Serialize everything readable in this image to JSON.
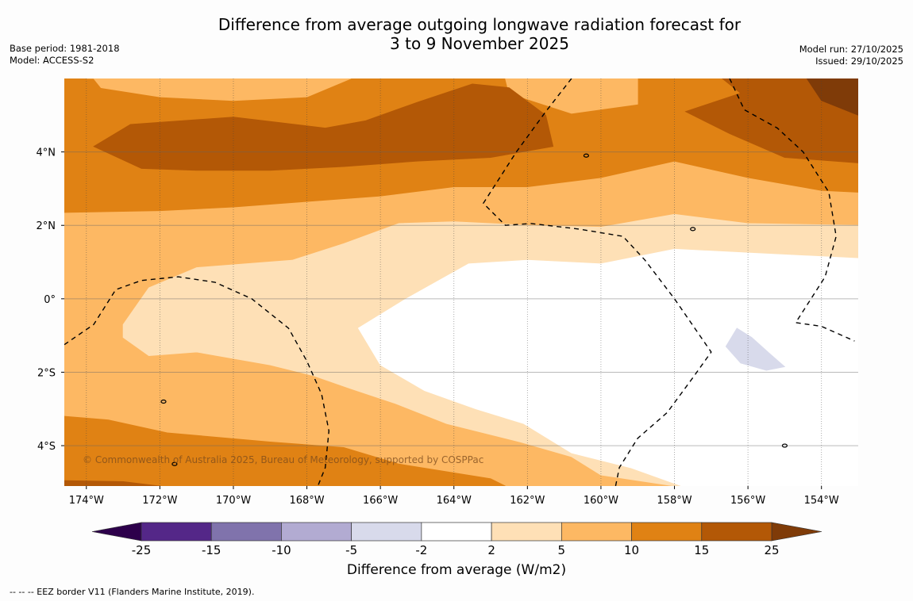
{
  "header": {
    "title_line1": "Difference from average outgoing longwave radiation forecast for",
    "title_line2": "3 to 9 November 2025",
    "base_period": "Base period: 1981-2018",
    "model": "Model: ACCESS-S2",
    "model_run": "Model run: 27/10/2025",
    "issued": "Issued: 29/10/2025"
  },
  "map": {
    "lon_range": [
      -174.6,
      -153.0
    ],
    "lat_range": [
      -5.1,
      6.0
    ],
    "lat_ticks": [
      {
        "value": 4,
        "label": "4°N"
      },
      {
        "value": 2,
        "label": "2°N"
      },
      {
        "value": 0,
        "label": "0°"
      },
      {
        "value": -2,
        "label": "2°S"
      },
      {
        "value": -4,
        "label": "4°S"
      }
    ],
    "lon_ticks": [
      {
        "value": -174,
        "label": "174°W"
      },
      {
        "value": -172,
        "label": "172°W"
      },
      {
        "value": -170,
        "label": "170°W"
      },
      {
        "value": -168,
        "label": "168°W"
      },
      {
        "value": -166,
        "label": "166°W"
      },
      {
        "value": -164,
        "label": "164°W"
      },
      {
        "value": -162,
        "label": "162°W"
      },
      {
        "value": -160,
        "label": "160°W"
      },
      {
        "value": -158,
        "label": "158°W"
      },
      {
        "value": -156,
        "label": "156°W"
      },
      {
        "value": -154,
        "label": "154°W"
      }
    ],
    "copyright": "© Commonwealth of Australia 2025, Bureau of Meteorology, supported by COSPPac",
    "background_band": "5 to 10",
    "contour_regions": [
      {
        "band": "10 to 15",
        "color": "#e08214",
        "points": [
          [
            -174.6,
            6.0
          ],
          [
            -153.0,
            6.0
          ],
          [
            -153.0,
            2.9
          ],
          [
            -154.0,
            2.95
          ],
          [
            -156.0,
            3.3
          ],
          [
            -158.0,
            3.75
          ],
          [
            -160.0,
            3.3
          ],
          [
            -162.0,
            3.05
          ],
          [
            -164.0,
            3.05
          ],
          [
            -166.0,
            2.8
          ],
          [
            -168.0,
            2.65
          ],
          [
            -170.0,
            2.5
          ],
          [
            -172.0,
            2.4
          ],
          [
            -174.6,
            2.35
          ]
        ]
      },
      {
        "band": "5 to 10",
        "color": "#fdb863",
        "points": [
          [
            -174.0,
            6.0
          ],
          [
            -166.8,
            6.0
          ],
          [
            -168.0,
            5.5
          ],
          [
            -170.0,
            5.4
          ],
          [
            -172.0,
            5.5
          ],
          [
            -173.6,
            5.75
          ],
          [
            -173.8,
            6.0
          ]
        ]
      },
      {
        "band": "5 to 10",
        "color": "#fdb863",
        "points": [
          [
            -162.6,
            6.0
          ],
          [
            -159.0,
            6.0
          ],
          [
            -159.0,
            5.3
          ],
          [
            -160.8,
            5.05
          ],
          [
            -162.5,
            5.6
          ]
        ]
      },
      {
        "band": "15 to 25",
        "color": "#b35806",
        "points": [
          [
            -173.8,
            4.15
          ],
          [
            -172.8,
            4.75
          ],
          [
            -170.0,
            4.95
          ],
          [
            -167.5,
            4.65
          ],
          [
            -166.4,
            4.85
          ],
          [
            -165.0,
            5.35
          ],
          [
            -163.5,
            5.85
          ],
          [
            -162.5,
            5.75
          ],
          [
            -161.5,
            5.0
          ],
          [
            -161.3,
            4.15
          ],
          [
            -163.0,
            3.85
          ],
          [
            -165.0,
            3.75
          ],
          [
            -167.0,
            3.6
          ],
          [
            -169.0,
            3.5
          ],
          [
            -171.0,
            3.5
          ],
          [
            -172.5,
            3.55
          ]
        ]
      },
      {
        "band": "15 to 25",
        "color": "#b35806",
        "points": [
          [
            -156.7,
            6.0
          ],
          [
            -153.0,
            6.0
          ],
          [
            -153.0,
            3.7
          ],
          [
            -155.0,
            3.85
          ],
          [
            -156.5,
            4.5
          ],
          [
            -157.7,
            5.1
          ],
          [
            -156.2,
            5.6
          ]
        ]
      },
      {
        "band": ">25",
        "color": "#7f3b08",
        "points": [
          [
            -154.4,
            6.0
          ],
          [
            -153.0,
            6.0
          ],
          [
            -153.0,
            5.0
          ],
          [
            -154.0,
            5.4
          ]
        ]
      },
      {
        "band": "2 to 5",
        "color": "#fee0b6",
        "points": [
          [
            -173.0,
            -0.7
          ],
          [
            -172.3,
            0.3
          ],
          [
            -171.0,
            0.85
          ],
          [
            -168.4,
            1.05
          ],
          [
            -167.0,
            1.5
          ],
          [
            -165.5,
            2.05
          ],
          [
            -164.0,
            2.1
          ],
          [
            -162.0,
            2.0
          ],
          [
            -160.0,
            1.95
          ],
          [
            -158.0,
            2.3
          ],
          [
            -156.0,
            2.05
          ],
          [
            -153.0,
            2.0
          ],
          [
            -153.0,
            -5.1
          ],
          [
            -158.0,
            -5.1
          ],
          [
            -160.0,
            -4.8
          ],
          [
            -160.8,
            -4.3
          ],
          [
            -162.2,
            -3.9
          ],
          [
            -164.2,
            -3.4
          ],
          [
            -165.6,
            -2.85
          ],
          [
            -166.8,
            -2.45
          ],
          [
            -167.8,
            -2.1
          ],
          [
            -169.0,
            -1.8
          ],
          [
            -171.0,
            -1.45
          ],
          [
            -172.3,
            -1.55
          ],
          [
            -173.0,
            -1.05
          ]
        ]
      },
      {
        "band": "-2 to 2",
        "color": "#ffffff",
        "points": [
          [
            -166.6,
            -0.8
          ],
          [
            -165.3,
            0.0
          ],
          [
            -163.6,
            0.95
          ],
          [
            -162.0,
            1.05
          ],
          [
            -160.0,
            0.95
          ],
          [
            -158.0,
            1.35
          ],
          [
            -156.0,
            1.25
          ],
          [
            -153.0,
            1.1
          ],
          [
            -153.0,
            -5.1
          ],
          [
            -157.8,
            -5.1
          ],
          [
            -159.2,
            -4.6
          ],
          [
            -160.8,
            -4.2
          ],
          [
            -162.1,
            -3.4
          ],
          [
            -163.4,
            -3.0
          ],
          [
            -164.8,
            -2.5
          ],
          [
            -166.0,
            -1.8
          ]
        ]
      },
      {
        "band": "-5 to -2",
        "color": "#d8daeb",
        "points": [
          [
            -156.3,
            -0.8
          ],
          [
            -156.6,
            -1.3
          ],
          [
            -156.2,
            -1.75
          ],
          [
            -155.5,
            -1.95
          ],
          [
            -155.0,
            -1.85
          ],
          [
            -155.4,
            -1.5
          ],
          [
            -155.9,
            -1.05
          ]
        ]
      },
      {
        "band": "10 to 15",
        "color": "#e08214",
        "points": [
          [
            -174.6,
            -3.2
          ],
          [
            -173.4,
            -3.3
          ],
          [
            -171.8,
            -3.65
          ],
          [
            -169.0,
            -3.9
          ],
          [
            -167.0,
            -4.05
          ],
          [
            -165.5,
            -4.5
          ],
          [
            -163.0,
            -4.9
          ],
          [
            -162.6,
            -5.1
          ],
          [
            -174.6,
            -5.1
          ]
        ]
      },
      {
        "band": "15 to 25",
        "color": "#b35806",
        "points": [
          [
            -174.6,
            -4.95
          ],
          [
            -173.0,
            -4.98
          ],
          [
            -172.0,
            -5.1
          ],
          [
            -174.6,
            -5.1
          ]
        ]
      }
    ],
    "eez_lines": [
      [
        [
          -174.6,
          -1.25
        ],
        [
          -173.8,
          -0.7
        ],
        [
          -173.2,
          0.25
        ],
        [
          -172.5,
          0.5
        ],
        [
          -171.5,
          0.6
        ],
        [
          -170.5,
          0.45
        ],
        [
          -169.5,
          0.0
        ],
        [
          -168.5,
          -0.8
        ],
        [
          -168.0,
          -1.7
        ],
        [
          -167.6,
          -2.6
        ],
        [
          -167.4,
          -3.6
        ],
        [
          -167.5,
          -4.6
        ],
        [
          -167.7,
          -5.1
        ]
      ],
      [
        [
          -160.8,
          6.0
        ],
        [
          -161.5,
          5.1
        ],
        [
          -162.3,
          4.0
        ],
        [
          -163.2,
          2.6
        ],
        [
          -162.6,
          2.0
        ],
        [
          -161.9,
          2.05
        ],
        [
          -160.6,
          1.9
        ],
        [
          -159.4,
          1.7
        ],
        [
          -158.8,
          1.05
        ],
        [
          -158.0,
          0.0
        ],
        [
          -157.0,
          -1.45
        ],
        [
          -157.5,
          -2.15
        ],
        [
          -158.2,
          -3.1
        ],
        [
          -159.0,
          -3.8
        ],
        [
          -159.5,
          -4.6
        ],
        [
          -159.6,
          -5.1
        ]
      ],
      [
        [
          -156.5,
          6.0
        ],
        [
          -156.1,
          5.15
        ],
        [
          -155.2,
          4.65
        ],
        [
          -154.5,
          4.0
        ],
        [
          -153.8,
          2.9
        ],
        [
          -153.6,
          1.7
        ],
        [
          -153.9,
          0.6
        ],
        [
          -154.7,
          -0.65
        ],
        [
          -154.0,
          -0.75
        ],
        [
          -153.1,
          -1.15
        ]
      ]
    ],
    "islands": [
      {
        "name": "atoll-1",
        "lon": -157.5,
        "lat": 1.9
      },
      {
        "name": "atoll-2",
        "lon": -160.4,
        "lat": 3.9
      },
      {
        "name": "islet-1",
        "lon": -171.9,
        "lat": -2.8
      },
      {
        "name": "islet-2",
        "lon": -155.0,
        "lat": -4.0
      },
      {
        "name": "islet-3",
        "lon": -171.6,
        "lat": -4.5
      }
    ]
  },
  "colorbar": {
    "label": "Difference from average (W/m2)",
    "low_extend_color": "#2d004b",
    "high_extend_color": "#7f3b08",
    "bins": [
      {
        "from": -25,
        "to": -15,
        "color": "#542788"
      },
      {
        "from": -15,
        "to": -10,
        "color": "#8073ac"
      },
      {
        "from": -10,
        "to": -5,
        "color": "#b2abd2"
      },
      {
        "from": -5,
        "to": -2,
        "color": "#d8daeb"
      },
      {
        "from": -2,
        "to": 2,
        "color": "#ffffff"
      },
      {
        "from": 2,
        "to": 5,
        "color": "#fee0b6"
      },
      {
        "from": 5,
        "to": 10,
        "color": "#fdb863"
      },
      {
        "from": 10,
        "to": 15,
        "color": "#e08214"
      },
      {
        "from": 15,
        "to": 25,
        "color": "#b35806"
      }
    ],
    "tick_labels": [
      "-25",
      "-15",
      "-10",
      "-5",
      "-2",
      "2",
      "5",
      "10",
      "15",
      "25"
    ]
  },
  "footnote": "--  --  -- EEZ border V11 (Flanders Marine Institute, 2019)."
}
